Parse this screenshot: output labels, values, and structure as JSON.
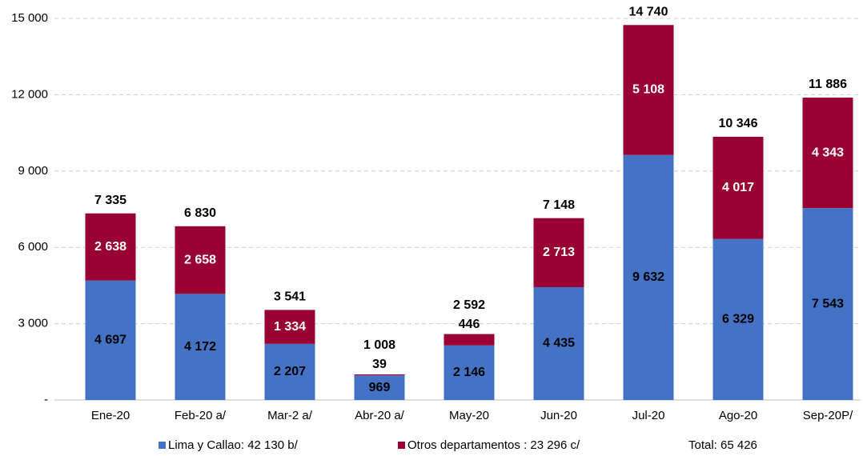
{
  "chart_data": {
    "type": "stacked_bar",
    "categories": [
      "Ene-20",
      "Feb-20 a/",
      "Mar-2 a/",
      "Abr-20 a/",
      "May-20",
      "Jun-20",
      "Jul-20",
      "Ago-20",
      "Sep-20P/"
    ],
    "series": [
      {
        "name": "Lima y Callao: 42 130 b/",
        "color": "#4472c4",
        "label_color": "#000000",
        "values": [
          4697,
          4172,
          2207,
          969,
          2146,
          4435,
          9632,
          6329,
          7543
        ],
        "value_labels": [
          "4 697",
          "4 172",
          "2 207",
          "969",
          "2 146",
          "4 435",
          "9 632",
          "6 329",
          "7 543"
        ]
      },
      {
        "name": "Otros departamentos : 23 296 c/",
        "color": "#990033",
        "label_color": "#ffffff",
        "values": [
          2638,
          2658,
          1334,
          39,
          446,
          2713,
          5108,
          4017,
          4343
        ],
        "value_labels": [
          "2 638",
          "2 658",
          "1 334",
          "39",
          "446",
          "2 713",
          "5 108",
          "4 017",
          "4 343"
        ]
      }
    ],
    "totals": [
      7335,
      6830,
      3541,
      1008,
      2592,
      7148,
      14740,
      10346,
      11886
    ],
    "total_labels": [
      "7 335",
      "6 830",
      "3 541",
      "1 008",
      "2 592",
      "7 148",
      "14 740",
      "10 346",
      "11 886"
    ],
    "legend_total": "Total: 65 426",
    "ylim": [
      0,
      15000
    ],
    "yticks": [
      {
        "value": 0,
        "label": "-"
      },
      {
        "value": 3000,
        "label": "3 000"
      },
      {
        "value": 6000,
        "label": "6 000"
      },
      {
        "value": 9000,
        "label": "9 000"
      },
      {
        "value": 12000,
        "label": "12 000"
      },
      {
        "value": 15000,
        "label": "15 000"
      }
    ],
    "grid": true,
    "legend": "bottom"
  }
}
